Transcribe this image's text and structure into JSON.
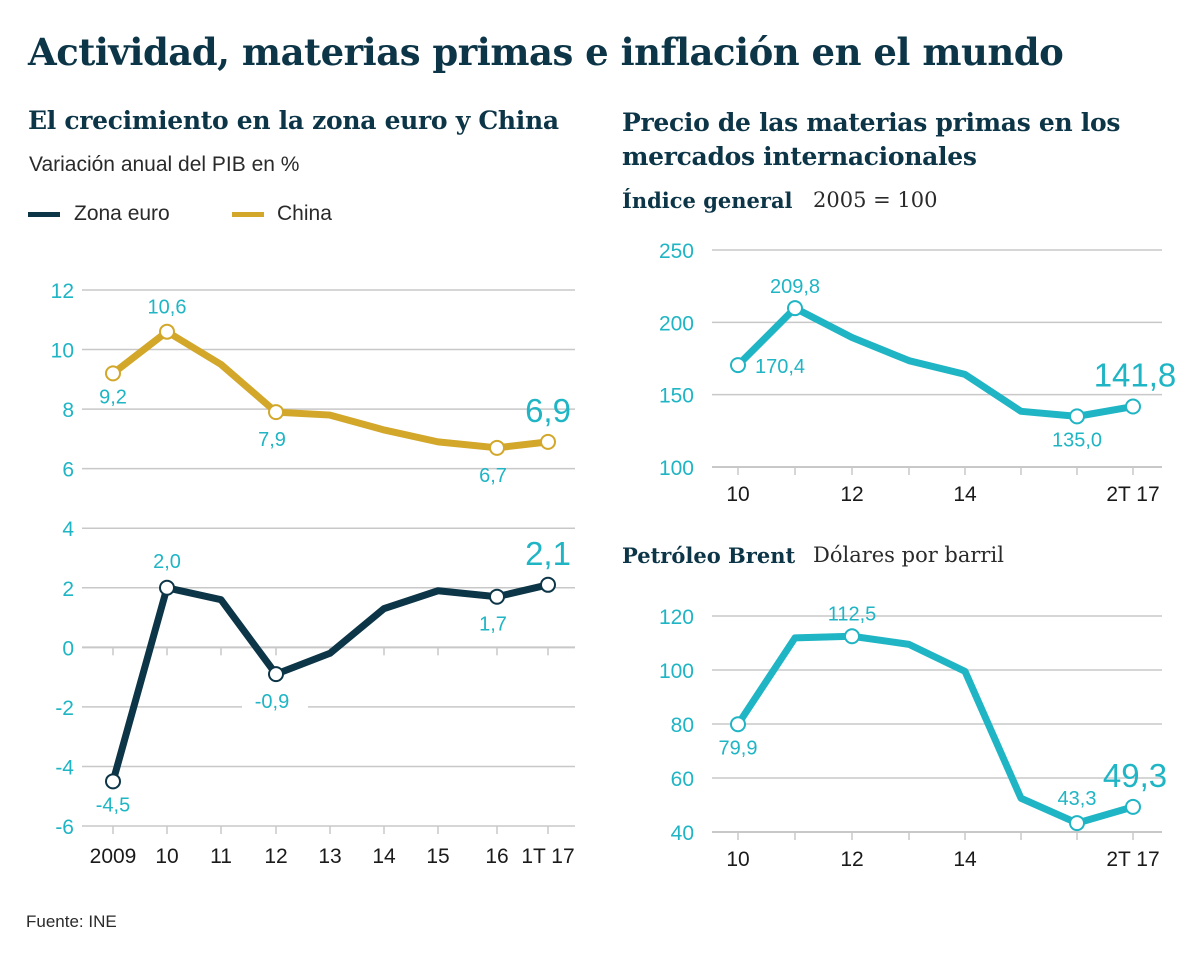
{
  "title": "Actividad, materias primas e inflación en el mundo",
  "source": "Fuente: INE",
  "colors": {
    "euro": "#0c3547",
    "china": "#d2a72a",
    "commodity": "#1fb5c4",
    "tick": "#1fb5c4",
    "grid": "#c8c8c8"
  },
  "chart_data": [
    {
      "type": "line",
      "title": "El crecimiento en la zona euro y China",
      "subtitle": "Variación anual del PIB en %",
      "categories": [
        "2009",
        "10",
        "11",
        "12",
        "13",
        "14",
        "15",
        "16",
        "1T 17"
      ],
      "ylim": [
        -6,
        12
      ],
      "yticks": [
        12,
        10,
        8,
        6,
        4,
        2,
        0,
        -2,
        -4,
        -6
      ],
      "ytick_labels": [
        "12",
        "10",
        "8",
        "6",
        "4",
        "2",
        "0",
        "-2",
        "-4",
        "-6"
      ],
      "legend": [
        "Zona euro",
        "China"
      ],
      "series": [
        {
          "name": "Zona euro",
          "values": [
            -4.5,
            2.0,
            1.6,
            -0.9,
            -0.2,
            1.3,
            1.9,
            1.7,
            2.1
          ],
          "markers": [
            0,
            1,
            3,
            7,
            8
          ],
          "labels": [
            "-4,5",
            "2,0",
            "",
            "-0,9",
            "",
            "",
            "",
            "1,7",
            "2,1"
          ]
        },
        {
          "name": "China",
          "values": [
            9.2,
            10.6,
            9.5,
            7.9,
            7.8,
            7.3,
            6.9,
            6.7,
            6.9
          ],
          "markers": [
            0,
            1,
            3,
            7,
            8
          ],
          "labels": [
            "9,2",
            "10,6",
            "",
            "7,9",
            "",
            "",
            "",
            "6,7",
            "6,9"
          ]
        }
      ]
    },
    {
      "type": "line",
      "title": "Precio de las materias primas en los mercados internacionales",
      "subtitle": "Índice general",
      "unit": "2005 = 100",
      "x": [
        2010,
        2011,
        2012,
        2013,
        2014,
        2015,
        2016,
        2017
      ],
      "xtick_labels": [
        "10",
        "12",
        "14",
        "2T 17"
      ],
      "ylim": [
        100,
        250
      ],
      "yticks": [
        250,
        200,
        150,
        100
      ],
      "series": [
        {
          "name": "Índice general",
          "values": [
            170.4,
            209.8,
            189.5,
            173.5,
            164.0,
            138.5,
            135.0,
            141.8
          ],
          "markers": [
            0,
            1,
            6,
            7
          ],
          "labels": [
            "170,4",
            "209,8",
            "",
            "",
            "",
            "",
            "135,0",
            "141,8"
          ]
        }
      ]
    },
    {
      "type": "line",
      "title": "Petróleo Brent",
      "unit": "Dólares por barril",
      "x": [
        2010,
        2011,
        2012,
        2013,
        2014,
        2015,
        2016,
        2017
      ],
      "xtick_labels": [
        "10",
        "12",
        "14",
        "2T 17"
      ],
      "ylim": [
        40,
        120
      ],
      "yticks": [
        120,
        100,
        80,
        60,
        40
      ],
      "series": [
        {
          "name": "Petróleo Brent",
          "values": [
            79.9,
            111.9,
            112.5,
            109.5,
            99.5,
            52.5,
            43.3,
            49.3
          ],
          "markers": [
            0,
            2,
            6,
            7
          ],
          "labels": [
            "79,9",
            "",
            "112,5",
            "",
            "",
            "",
            "43,3",
            "49,3"
          ]
        }
      ]
    }
  ]
}
